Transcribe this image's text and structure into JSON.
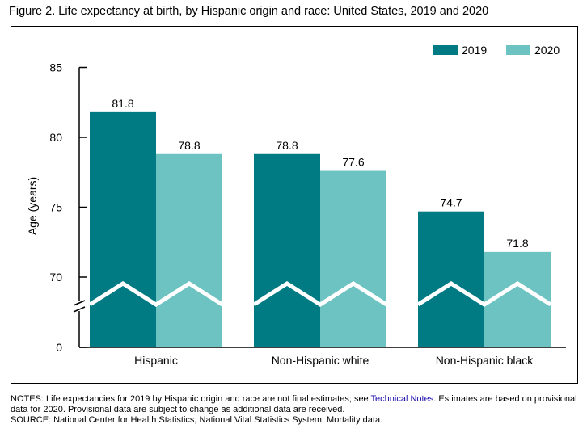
{
  "figure": {
    "title": "Figure 2. Life expectancy at birth, by Hispanic origin and race: United States, 2019 and 2020"
  },
  "chart_data": {
    "type": "bar",
    "categories": [
      "Hispanic",
      "Non-Hispanic white",
      "Non-Hispanic black"
    ],
    "series": [
      {
        "name": "2019",
        "values": [
          81.8,
          78.8,
          74.7
        ],
        "color": "#007b84"
      },
      {
        "name": "2020",
        "values": [
          78.8,
          77.6,
          71.8
        ],
        "color": "#6cc3c1"
      }
    ],
    "data_labels": [
      [
        "81.8",
        "78.8",
        "74.7"
      ],
      [
        "78.8",
        "77.6",
        "71.8"
      ]
    ],
    "xlabel": "",
    "ylabel": "Age (years)",
    "yticks": [
      0,
      70,
      75,
      80,
      85
    ],
    "yticks_labels": [
      "0",
      "70",
      "75",
      "80",
      "85"
    ],
    "ylim": [
      0,
      85
    ],
    "axis_break": [
      0,
      70
    ],
    "grid": false,
    "legend_position": "top-right"
  },
  "notes": {
    "line1_before_link": "NOTES: Life expectancies for 2019 by Hispanic origin and race are not final estimates; see ",
    "link_text": "Technical Notes",
    "line1_after_link": ". Estimates are based on provisional data for 2020. Provisional data are subject to change as additional data are received.",
    "source": "SOURCE: National Center for Health Statistics, National Vital Statistics System, Mortality data."
  }
}
